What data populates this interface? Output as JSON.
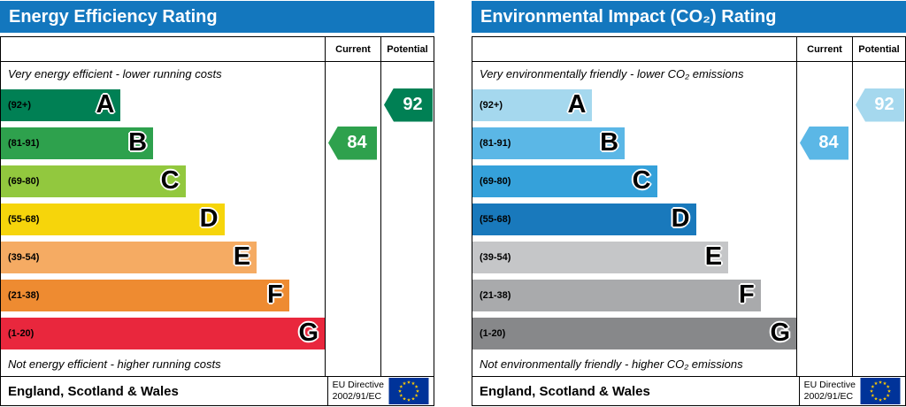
{
  "charts": [
    {
      "title": "Energy Efficiency Rating",
      "header_color": "#1377be",
      "columns": {
        "current": "Current",
        "potential": "Potential"
      },
      "top_caption": "Very energy efficient - lower running costs",
      "bottom_caption": "Not energy efficient - higher running costs",
      "bands": [
        {
          "letter": "A",
          "range": "(92+)",
          "color": "#008054",
          "width": "37%"
        },
        {
          "letter": "B",
          "range": "(81-91)",
          "color": "#2ea14d",
          "width": "47%"
        },
        {
          "letter": "C",
          "range": "(69-80)",
          "color": "#92c83e",
          "width": "57%"
        },
        {
          "letter": "D",
          "range": "(55-68)",
          "color": "#f6d50b",
          "width": "69%"
        },
        {
          "letter": "E",
          "range": "(39-54)",
          "color": "#f5ab63",
          "width": "79%"
        },
        {
          "letter": "F",
          "range": "(21-38)",
          "color": "#ee8b31",
          "width": "89%"
        },
        {
          "letter": "G",
          "range": "(1-20)",
          "color": "#e9273d",
          "width": "100%"
        }
      ],
      "current": {
        "value": "84",
        "band": "B",
        "color": "#2ea14d"
      },
      "potential": {
        "value": "92",
        "band": "A",
        "color": "#008054"
      },
      "footer": {
        "region": "England, Scotland & Wales",
        "directive_line1": "EU Directive",
        "directive_line2": "2002/91/EC"
      }
    },
    {
      "title": "Environmental Impact (CO₂) Rating",
      "header_color": "#1377be",
      "columns": {
        "current": "Current",
        "potential": "Potential"
      },
      "top_caption": "Very environmentally friendly - lower CO₂ emissions",
      "bottom_caption": "Not environmentally friendly - higher CO₂ emissions",
      "bands": [
        {
          "letter": "A",
          "range": "(92+)",
          "color": "#a5d8ee",
          "width": "37%"
        },
        {
          "letter": "B",
          "range": "(81-91)",
          "color": "#5bb7e6",
          "width": "47%"
        },
        {
          "letter": "C",
          "range": "(69-80)",
          "color": "#35a1da",
          "width": "57%"
        },
        {
          "letter": "D",
          "range": "(55-68)",
          "color": "#1979bc",
          "width": "69%"
        },
        {
          "letter": "E",
          "range": "(39-54)",
          "color": "#c5c6c8",
          "width": "79%"
        },
        {
          "letter": "F",
          "range": "(21-38)",
          "color": "#a9aaac",
          "width": "89%"
        },
        {
          "letter": "G",
          "range": "(1-20)",
          "color": "#87888a",
          "width": "100%"
        }
      ],
      "current": {
        "value": "84",
        "band": "B",
        "color": "#5bb7e6"
      },
      "potential": {
        "value": "92",
        "band": "A",
        "color": "#a5d8ee"
      },
      "footer": {
        "region": "England, Scotland & Wales",
        "directive_line1": "EU Directive",
        "directive_line2": "2002/91/EC"
      }
    }
  ],
  "eu_flag": {
    "background": "#003399",
    "star_color": "#ffcc00"
  },
  "chart_data": [
    {
      "type": "bar",
      "title": "Energy Efficiency Rating",
      "categories": [
        "A (92+)",
        "B (81-91)",
        "C (69-80)",
        "D (55-68)",
        "E (39-54)",
        "F (21-38)",
        "G (1-20)"
      ],
      "values": [
        37,
        47,
        57,
        69,
        79,
        89,
        100
      ],
      "values_note": "bar lengths are the fixed decorative EPC scale, % of band column width",
      "current_rating": 84,
      "current_band": "B",
      "potential_rating": 92,
      "potential_band": "A",
      "top_caption": "Very energy efficient - lower running costs",
      "bottom_caption": "Not energy efficient - higher running costs",
      "footer": "England, Scotland & Wales — EU Directive 2002/91/EC",
      "legend_position": "none"
    },
    {
      "type": "bar",
      "title": "Environmental Impact (CO₂) Rating",
      "categories": [
        "A (92+)",
        "B (81-91)",
        "C (69-80)",
        "D (55-68)",
        "E (39-54)",
        "F (21-38)",
        "G (1-20)"
      ],
      "values": [
        37,
        47,
        57,
        69,
        79,
        89,
        100
      ],
      "values_note": "bar lengths are the fixed decorative EPC scale, % of band column width",
      "current_rating": 84,
      "current_band": "B",
      "potential_rating": 92,
      "potential_band": "A",
      "top_caption": "Very environmentally friendly - lower CO₂ emissions",
      "bottom_caption": "Not environmentally friendly - higher CO₂ emissions",
      "footer": "England, Scotland & Wales — EU Directive 2002/91/EC",
      "legend_position": "none"
    }
  ]
}
